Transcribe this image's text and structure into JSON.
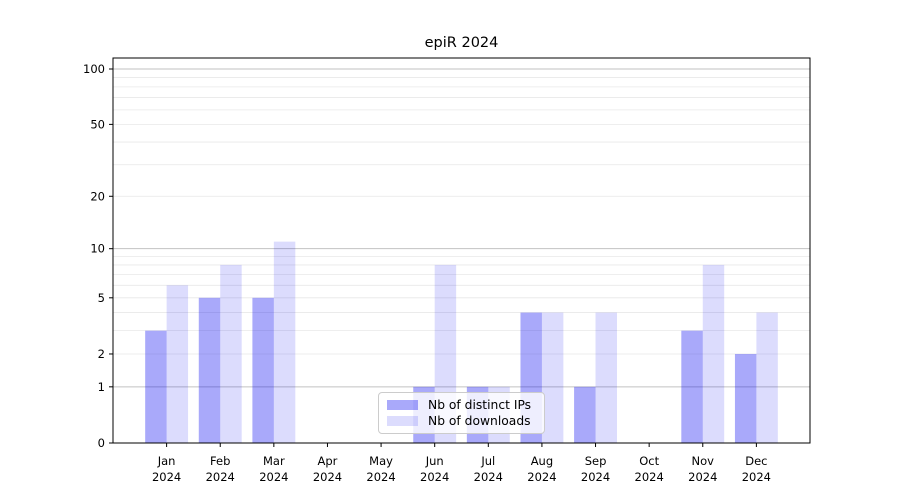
{
  "chart_data": {
    "type": "bar",
    "title": "epiR 2024",
    "xlabel": "",
    "ylabel": "",
    "yscale": "log1p",
    "ylim": [
      0,
      114.7
    ],
    "yticks": [
      0,
      1,
      2,
      5,
      10,
      20,
      50,
      100
    ],
    "major_gridlines": [
      1,
      10,
      100
    ],
    "minor_gridlines": [
      2,
      3,
      4,
      5,
      6,
      7,
      8,
      9,
      20,
      30,
      40,
      50,
      60,
      70,
      80,
      90
    ],
    "categories": [
      "Jan 2024",
      "Feb 2024",
      "Mar 2024",
      "Apr 2024",
      "May 2024",
      "Jun 2024",
      "Jul 2024",
      "Aug 2024",
      "Sep 2024",
      "Oct 2024",
      "Nov 2024",
      "Dec 2024"
    ],
    "series": [
      {
        "name": "Nb of distinct IPs",
        "color": "rgba(10,10,240,0.35)",
        "solid_color": "#aaaaf2",
        "values": [
          3,
          5,
          5,
          0,
          0,
          1,
          1,
          4,
          1,
          0,
          3,
          2
        ]
      },
      {
        "name": "Nb of downloads",
        "color": "rgba(10,10,240,0.14)",
        "solid_color": "#dcdcf9",
        "values": [
          6,
          8,
          11,
          0,
          0,
          8,
          1,
          4,
          4,
          0,
          8,
          4
        ]
      }
    ],
    "legend_position": "inside-bottom-center",
    "style": {
      "major_grid_color": "#c2c2c2",
      "minor_grid_color": "#e8e8e8",
      "spine_color": "#000000",
      "text_color": "#000000",
      "background": "#ffffff"
    }
  }
}
